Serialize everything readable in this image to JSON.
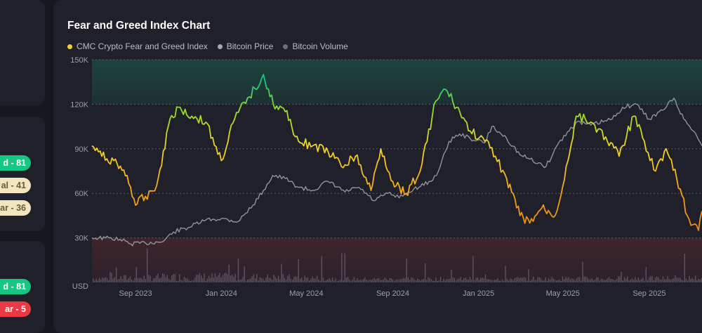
{
  "sidebar": {
    "mid_pills": [
      {
        "text": "d - 81",
        "color": "green"
      },
      {
        "text": "al - 41",
        "color": "cream"
      },
      {
        "text": "ar - 36",
        "color": "cream"
      }
    ],
    "bottom_pills": [
      {
        "text": "d - 81",
        "color": "green"
      },
      {
        "text": "ar - 5",
        "color": "red"
      }
    ]
  },
  "chart_data": {
    "type": "line",
    "title": "Fear and Greed Index Chart",
    "legend": [
      {
        "name": "CMC Crypto Fear and Greed Index",
        "color": "#f3d22b"
      },
      {
        "name": "Bitcoin Price",
        "color": "#a6a8b0"
      },
      {
        "name": "Bitcoin Volume",
        "color": "#6e6e7a"
      }
    ],
    "x_ticks": [
      "Sep 2023",
      "Jan 2024",
      "May 2024",
      "Sep 2024",
      "Jan 2025",
      "May 2025",
      "Sep 2025"
    ],
    "y_ticks": [
      "150K",
      "120K",
      "90K",
      "60K",
      "30K",
      "USD"
    ],
    "y_tick_values": [
      150000,
      120000,
      90000,
      60000,
      30000,
      0
    ],
    "ylim": [
      0,
      150000
    ],
    "x_range": [
      "2023-07-01",
      "2025-11-15"
    ],
    "zones": [
      {
        "label": "greed",
        "from": 120000,
        "to": 150000,
        "color": "#16c784"
      },
      {
        "label": "fear",
        "from": 0,
        "to": 30000,
        "color": "#ea3943"
      }
    ],
    "grid": true,
    "legend_position": "top-left",
    "series": [
      {
        "name": "CMC Crypto Fear and Greed Index",
        "x": [
          "2023-07-01",
          "2023-07-15",
          "2023-08-01",
          "2023-08-20",
          "2023-09-01",
          "2023-09-15",
          "2023-10-01",
          "2023-10-20",
          "2023-11-01",
          "2023-11-20",
          "2023-12-10",
          "2024-01-01",
          "2024-01-20",
          "2024-02-10",
          "2024-03-01",
          "2024-03-15",
          "2024-04-01",
          "2024-04-20",
          "2024-05-10",
          "2024-06-01",
          "2024-06-20",
          "2024-07-10",
          "2024-08-01",
          "2024-08-15",
          "2024-09-01",
          "2024-09-20",
          "2024-10-10",
          "2024-11-01",
          "2024-11-15",
          "2024-12-01",
          "2024-12-20",
          "2025-01-10",
          "2025-01-25",
          "2025-02-10",
          "2025-03-01",
          "2025-03-15",
          "2025-04-01",
          "2025-04-20",
          "2025-05-01",
          "2025-05-20",
          "2025-06-10",
          "2025-07-01",
          "2025-07-20",
          "2025-08-10",
          "2025-08-25",
          "2025-09-10",
          "2025-09-25",
          "2025-10-10",
          "2025-10-25",
          "2025-11-10",
          "2025-11-15"
        ],
        "y": [
          92000,
          85000,
          82000,
          72000,
          52000,
          58000,
          65000,
          110000,
          118000,
          112000,
          108000,
          82000,
          110000,
          125000,
          140000,
          120000,
          115000,
          95000,
          92000,
          88000,
          78000,
          85000,
          62000,
          90000,
          68000,
          60000,
          75000,
          122000,
          130000,
          118000,
          102000,
          95000,
          85000,
          70000,
          45000,
          40000,
          50000,
          45000,
          65000,
          112000,
          108000,
          98000,
          85000,
          112000,
          95000,
          75000,
          90000,
          70000,
          45000,
          35000,
          48000
        ]
      },
      {
        "name": "Bitcoin Price",
        "x": [
          "2023-07-01",
          "2023-07-20",
          "2023-08-10",
          "2023-08-25",
          "2023-09-15",
          "2023-10-10",
          "2023-10-25",
          "2023-11-15",
          "2023-12-10",
          "2024-01-01",
          "2024-01-25",
          "2024-02-15",
          "2024-03-01",
          "2024-03-14",
          "2024-04-01",
          "2024-04-20",
          "2024-05-10",
          "2024-06-01",
          "2024-06-25",
          "2024-07-15",
          "2024-08-05",
          "2024-08-25",
          "2024-09-10",
          "2024-10-01",
          "2024-10-25",
          "2024-11-05",
          "2024-11-20",
          "2024-12-05",
          "2024-12-20",
          "2025-01-10",
          "2025-01-20",
          "2025-02-10",
          "2025-03-01",
          "2025-03-15",
          "2025-04-07",
          "2025-04-25",
          "2025-05-20",
          "2025-06-10",
          "2025-07-10",
          "2025-07-25",
          "2025-08-14",
          "2025-09-01",
          "2025-09-20",
          "2025-10-06",
          "2025-10-20",
          "2025-11-05",
          "2025-11-15"
        ],
        "y": [
          30000,
          30000,
          29000,
          26000,
          26500,
          27500,
          34000,
          37000,
          42000,
          43000,
          41000,
          52000,
          62000,
          72000,
          70000,
          64000,
          62000,
          68000,
          61000,
          64000,
          55000,
          60000,
          57000,
          63000,
          68000,
          75000,
          95000,
          100000,
          97000,
          94000,
          105000,
          97000,
          86000,
          83000,
          78000,
          94000,
          108000,
          106000,
          110000,
          118000,
          120000,
          110000,
          116000,
          124000,
          110000,
          101000,
          92000
        ]
      }
    ]
  }
}
